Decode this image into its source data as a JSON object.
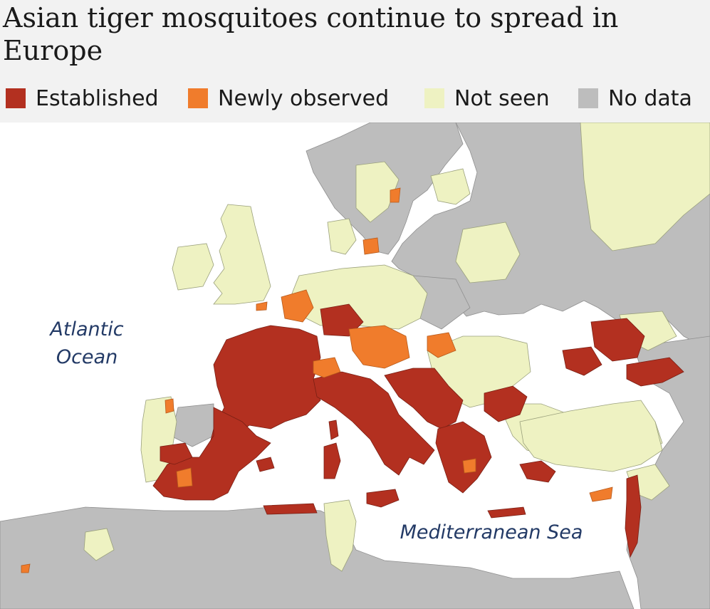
{
  "title": "Asian tiger mosquitoes continue to spread in Europe",
  "legend": [
    {
      "label": "Established",
      "color": "#b33020"
    },
    {
      "label": "Newly observed",
      "color": "#f07c2c"
    },
    {
      "label": "Not seen",
      "color": "#eef2c2"
    },
    {
      "label": "No data",
      "color": "#bdbdbd"
    }
  ],
  "map": {
    "sea_color": "#ffffff",
    "labels": {
      "atlantic_line1": "Atlantic",
      "atlantic_line2": "Ocean",
      "mediterranean": "Mediterranean Sea"
    }
  }
}
